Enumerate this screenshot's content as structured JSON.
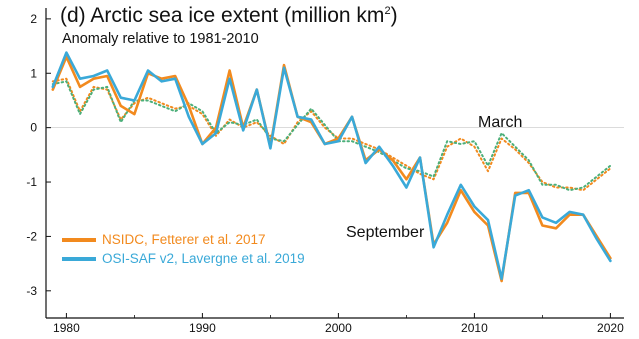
{
  "chart_data": {
    "type": "line",
    "title_main": "(d) Arctic sea ice extent (million km",
    "title_sup": "2",
    "title_close": ")",
    "subtitle": "Anomaly relative to 1981-2010",
    "xlabel": "",
    "ylabel": "",
    "xlim": [
      1978.5,
      2021
    ],
    "ylim": [
      -3.5,
      2.2
    ],
    "xticks": [
      1980,
      1990,
      2000,
      2010,
      2020
    ],
    "yticks": [
      2,
      1,
      0,
      -1,
      -2,
      -3
    ],
    "annotations": {
      "march": "March",
      "september": "September"
    },
    "legend": {
      "position": "lower-left",
      "entries": [
        {
          "label": "NSIDC, Fetterer et al. 2017",
          "color": "#f28a1e"
        },
        {
          "label": "OSI-SAF v2, Lavergne et al. 2019",
          "color": "#3aa9d8"
        }
      ]
    },
    "x": [
      1979,
      1980,
      1981,
      1982,
      1983,
      1984,
      1985,
      1986,
      1987,
      1988,
      1989,
      1990,
      1991,
      1992,
      1993,
      1994,
      1995,
      1996,
      1997,
      1998,
      1999,
      2000,
      2001,
      2002,
      2003,
      2004,
      2005,
      2006,
      2007,
      2008,
      2009,
      2010,
      2011,
      2012,
      2013,
      2014,
      2015,
      2016,
      2017,
      2018,
      2019,
      2020
    ],
    "series": [
      {
        "name": "NSIDC, Fetterer et al. 2017",
        "month": "September",
        "style": "solid",
        "color": "#f28a1e",
        "values": [
          0.7,
          1.3,
          0.75,
          0.9,
          0.95,
          0.4,
          0.25,
          1.0,
          0.9,
          0.95,
          0.4,
          -0.3,
          0.0,
          1.05,
          0.0,
          0.7,
          -0.35,
          1.15,
          0.2,
          0.1,
          -0.3,
          -0.2,
          0.2,
          -0.6,
          -0.4,
          -0.6,
          -0.95,
          -0.55,
          -2.15,
          -1.75,
          -1.15,
          -1.55,
          -1.8,
          -2.82,
          -1.2,
          -1.2,
          -1.8,
          -1.85,
          -1.6,
          -1.6,
          -2.0,
          -2.4
        ]
      },
      {
        "name": "OSI-SAF v2, Lavergne et al. 2019",
        "month": "September",
        "style": "solid",
        "color": "#3aa9d8",
        "values": [
          0.75,
          1.38,
          0.9,
          0.95,
          1.05,
          0.55,
          0.5,
          1.05,
          0.85,
          0.9,
          0.2,
          -0.3,
          -0.1,
          0.9,
          -0.05,
          0.7,
          -0.38,
          1.1,
          0.2,
          0.15,
          -0.3,
          -0.25,
          0.2,
          -0.65,
          -0.35,
          -0.7,
          -1.1,
          -0.55,
          -2.2,
          -1.6,
          -1.05,
          -1.45,
          -1.7,
          -2.78,
          -1.25,
          -1.15,
          -1.65,
          -1.75,
          -1.55,
          -1.6,
          -2.05,
          -2.45
        ]
      },
      {
        "name": "NSIDC, Fetterer et al. 2017",
        "month": "March",
        "style": "dotted",
        "color": "#f28a1e",
        "values": [
          0.85,
          0.9,
          0.3,
          0.75,
          0.7,
          0.15,
          0.45,
          0.55,
          0.45,
          0.35,
          0.4,
          0.25,
          -0.15,
          0.15,
          0.0,
          0.1,
          -0.15,
          -0.3,
          0.1,
          0.3,
          0.0,
          -0.2,
          -0.2,
          -0.3,
          -0.4,
          -0.55,
          -0.7,
          -0.85,
          -0.95,
          -0.35,
          -0.2,
          -0.35,
          -0.8,
          -0.2,
          -0.4,
          -0.65,
          -1.0,
          -1.1,
          -1.1,
          -1.15,
          -0.95,
          -0.75
        ]
      },
      {
        "name": "OSI-SAF v2, Lavergne et al. 2019",
        "month": "March",
        "style": "dotted",
        "color": "#4caf7a",
        "values": [
          0.8,
          0.85,
          0.25,
          0.7,
          0.75,
          0.1,
          0.5,
          0.5,
          0.4,
          0.3,
          0.45,
          0.3,
          -0.1,
          0.1,
          0.05,
          0.15,
          -0.2,
          -0.25,
          0.05,
          0.35,
          0.05,
          -0.25,
          -0.25,
          -0.35,
          -0.45,
          -0.6,
          -0.75,
          -0.8,
          -0.9,
          -0.25,
          -0.3,
          -0.25,
          -0.7,
          -0.1,
          -0.35,
          -0.6,
          -1.05,
          -1.05,
          -1.15,
          -1.1,
          -0.9,
          -0.7
        ]
      }
    ]
  }
}
